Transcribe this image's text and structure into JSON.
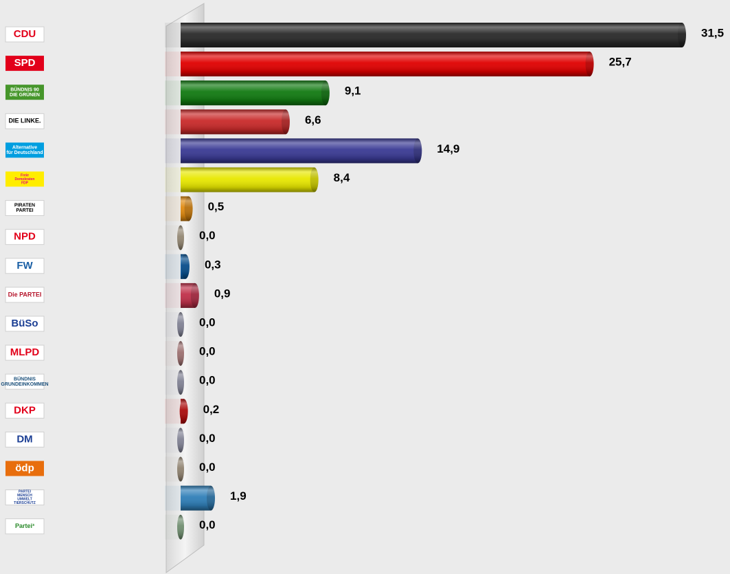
{
  "chart_data": {
    "type": "bar",
    "orientation": "horizontal",
    "xlim": [
      0,
      31.5
    ],
    "grid": false,
    "legend": "none",
    "categories": [
      "CDU",
      "SPD",
      "BÜNDNIS 90 DIE GRÜNEN",
      "DIE LINKE.",
      "Alternative für Deutschland",
      "Freie Demokraten FDP",
      "PIRATEN PARTEI",
      "NPD",
      "FW",
      "Die PARTEI",
      "BüSo",
      "MLPD",
      "BÜNDNIS GRUNDEINKOMMEN",
      "DKP",
      "DM",
      "ödp",
      "PARTEI MENSCH UMWELT TIERSCHUTZ",
      "V-Partei³"
    ],
    "values": [
      31.5,
      25.7,
      9.1,
      6.6,
      14.9,
      8.4,
      0.5,
      0.0,
      0.3,
      0.9,
      0.0,
      0.0,
      0.0,
      0.2,
      0.0,
      0.0,
      1.9,
      0.0
    ],
    "value_labels": [
      "31,5",
      "25,7",
      "9,1",
      "6,6",
      "14,9",
      "8,4",
      "0,5",
      "0,0",
      "0,3",
      "0,9",
      "0,0",
      "0,0",
      "0,0",
      "0,2",
      "0,0",
      "0,0",
      "1,9",
      "0,0"
    ],
    "colors": [
      "#2a2a2a",
      "#e00000",
      "#117a11",
      "#c92a2a",
      "#3a3a94",
      "#e8e800",
      "#e08a10",
      "#b5a68e",
      "#0a5ea8",
      "#c0304a",
      "#9ea0b6",
      "#c08a8a",
      "#9ea0b6",
      "#d01010",
      "#9ea0b6",
      "#b0a08a",
      "#2f7fb8",
      "#8aae8a"
    ]
  },
  "logos": [
    {
      "name": "cdu",
      "text": "CDU",
      "bg": "#ffffff",
      "fg": "#e2001a"
    },
    {
      "name": "spd",
      "text": "SPD",
      "bg": "#e2001a",
      "fg": "#ffffff"
    },
    {
      "name": "gruene",
      "text": "BÜNDNIS 90\nDIE GRÜNEN",
      "bg": "#46962b",
      "fg": "#ffffff"
    },
    {
      "name": "linke",
      "text": "DIE LINKE.",
      "bg": "#ffffff",
      "fg": "#000000"
    },
    {
      "name": "afd",
      "text": "Alternative\nfür Deutschland",
      "bg": "#009ee0",
      "fg": "#ffffff"
    },
    {
      "name": "fdp",
      "text": "Freie\nDemokraten\nFDP",
      "bg": "#ffed00",
      "fg": "#e5007d"
    },
    {
      "name": "piraten",
      "text": "PIRATEN\nPARTEI",
      "bg": "#ffffff",
      "fg": "#000000"
    },
    {
      "name": "npd",
      "text": "NPD",
      "bg": "#ffffff",
      "fg": "#e2001a"
    },
    {
      "name": "fw",
      "text": "FW",
      "bg": "#ffffff",
      "fg": "#1a5fa5"
    },
    {
      "name": "diepartei",
      "text": "Die PARTEI",
      "bg": "#ffffff",
      "fg": "#b5152b"
    },
    {
      "name": "bueso",
      "text": "BüSo",
      "bg": "#ffffff",
      "fg": "#1c3f94"
    },
    {
      "name": "mlpd",
      "text": "MLPD",
      "bg": "#ffffff",
      "fg": "#e2001a"
    },
    {
      "name": "grundeinkommen",
      "text": "BÜNDNIS\nGRUNDEINKOMMEN",
      "bg": "#ffffff",
      "fg": "#1a4f7a"
    },
    {
      "name": "dkp",
      "text": "DKP",
      "bg": "#ffffff",
      "fg": "#e2001a"
    },
    {
      "name": "dm",
      "text": "DM",
      "bg": "#ffffff",
      "fg": "#1c3f94"
    },
    {
      "name": "oedp",
      "text": "ödp",
      "bg": "#e86e0d",
      "fg": "#ffffff"
    },
    {
      "name": "tierschutz",
      "text": "PARTEI\nMENSCH\nUMWELT\nTIERSCHUTZ",
      "bg": "#ffffff",
      "fg": "#1c3f94"
    },
    {
      "name": "vpartei",
      "text": "Partei³",
      "bg": "#ffffff",
      "fg": "#2a8a2a"
    }
  ]
}
